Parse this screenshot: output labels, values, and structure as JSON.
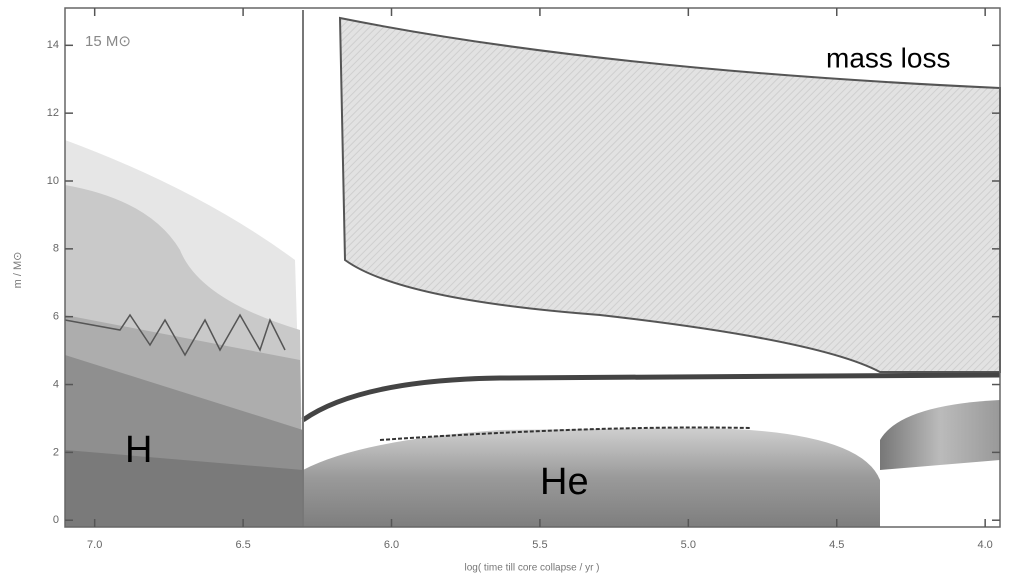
{
  "chart_data": {
    "type": "kippenhahn",
    "xlabel": "log( time till core collapse / yr )",
    "ylabel": "m / M⊙",
    "xlim": [
      7.1,
      3.95
    ],
    "xticks": [
      {
        "value": 7,
        "label": "7.0"
      },
      {
        "value": 6.5,
        "label": "6.5"
      },
      {
        "value": 6,
        "label": "6.0"
      },
      {
        "value": 5.5,
        "label": "5.5"
      },
      {
        "value": 5,
        "label": "5.0"
      },
      {
        "value": 4.5,
        "label": "4.5"
      },
      {
        "value": 4,
        "label": "4.0"
      }
    ],
    "ylim": [
      -0.2,
      15.1
    ],
    "yticks": [
      0,
      2,
      4,
      6,
      8,
      10,
      12,
      14
    ],
    "annotations": [
      "15 M⊙",
      "mass loss",
      "H",
      "He"
    ]
  }
}
